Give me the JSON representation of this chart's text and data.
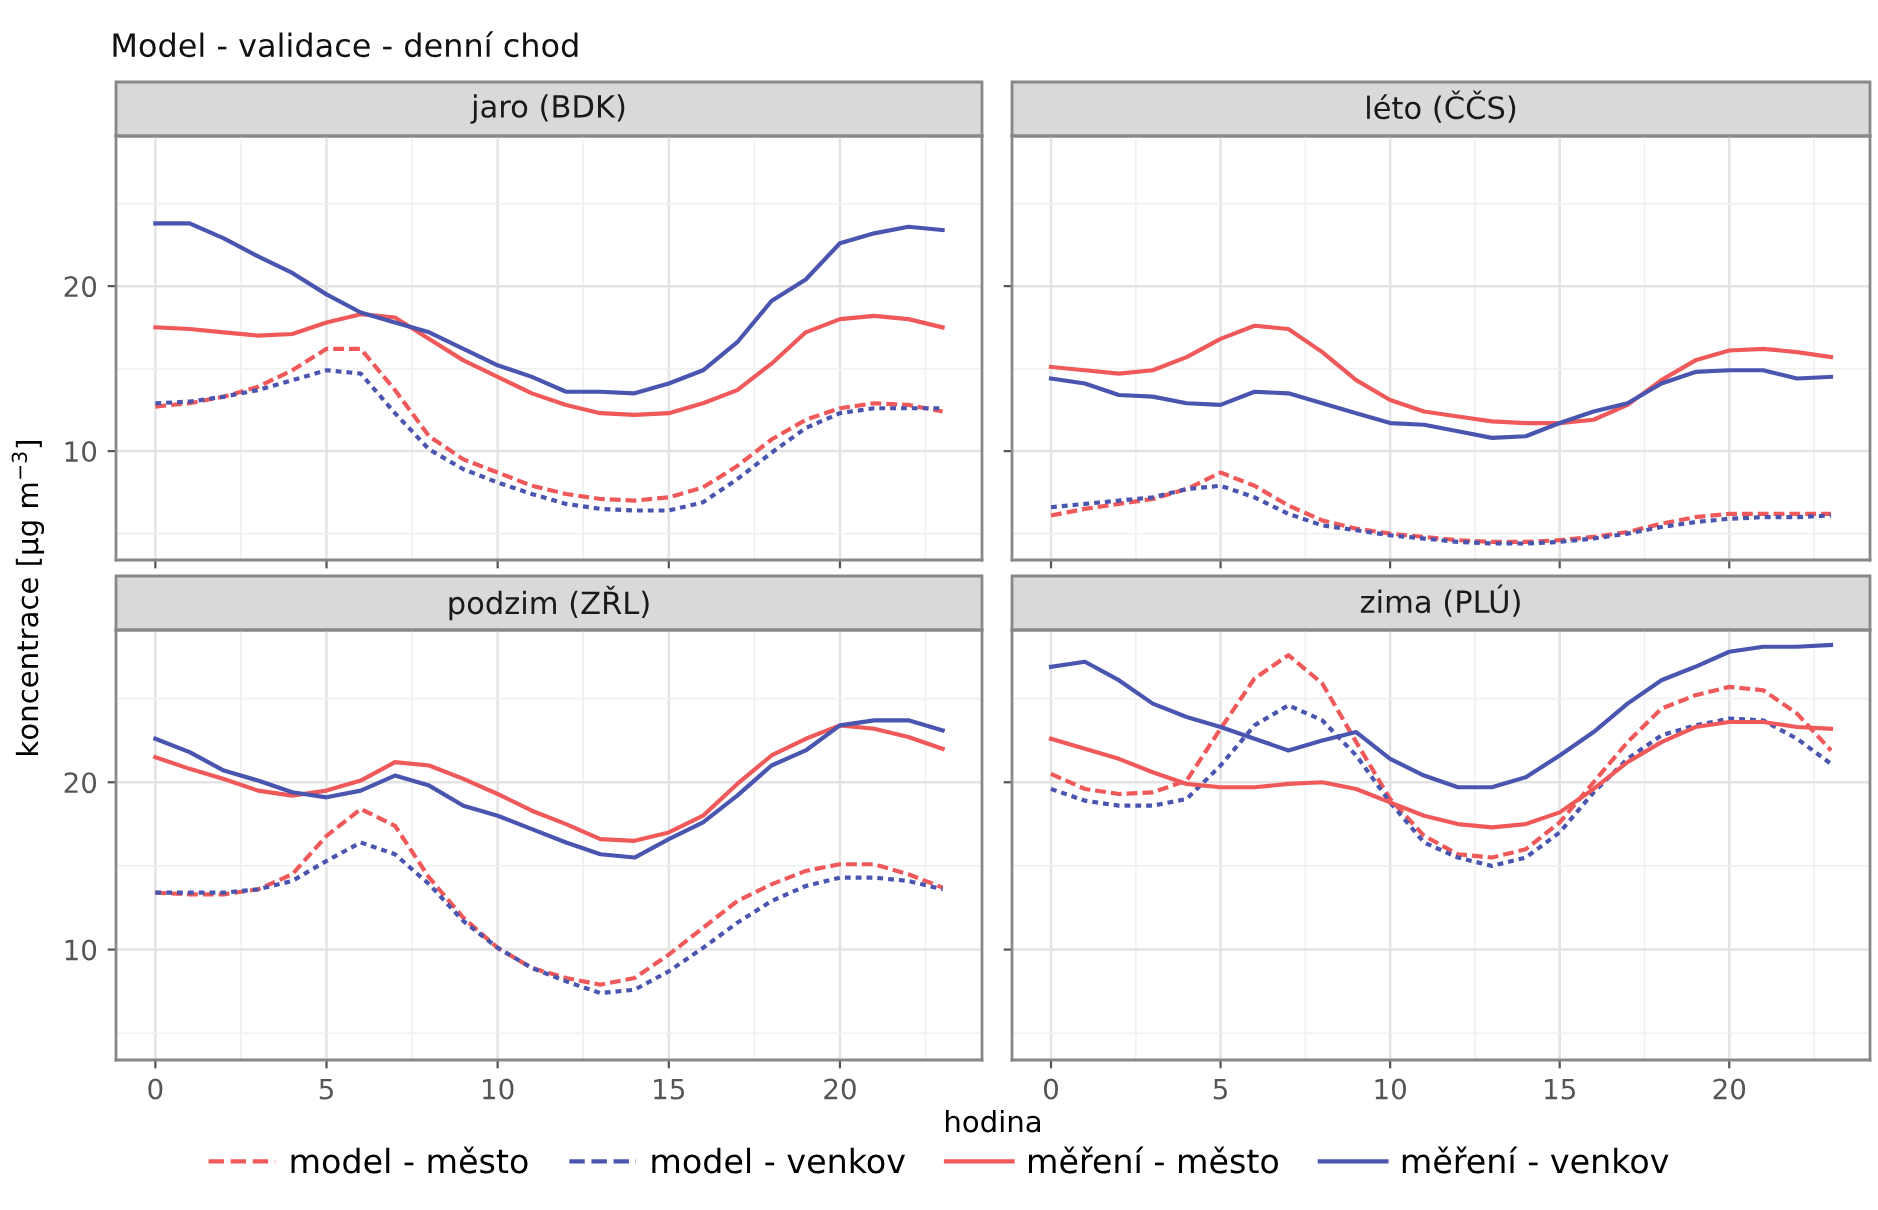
{
  "chart_data": [
    {
      "type": "line",
      "title": "Model - validace - denní chod",
      "subtitle": "jaro (BDK)",
      "ylabel": "koncentrace [μg m$^{−3}$]",
      "x": [
        0,
        1,
        2,
        3,
        4,
        5,
        6,
        7,
        8,
        9,
        10,
        11,
        12,
        13,
        14,
        15,
        16,
        17,
        18,
        19,
        20,
        21,
        22,
        23
      ],
      "xlim": [
        -1.15,
        24.15
      ],
      "xticks": [
        0,
        5,
        10,
        15,
        20
      ],
      "ylim": [
        3.4,
        29.1
      ],
      "yticks": [
        10,
        20
      ],
      "grid": true,
      "tick_labels": "y",
      "legend": "bottom",
      "series": [
        {
          "name": "model - město",
          "color": "#f0595a",
          "line_style": "dashed",
          "values": [
            12.7,
            12.9,
            13.3,
            13.9,
            14.9,
            16.2,
            16.2,
            13.7,
            10.9,
            9.5,
            8.7,
            7.9,
            7.4,
            7.1,
            7.0,
            7.2,
            7.8,
            9.1,
            10.7,
            11.9,
            12.6,
            12.9,
            12.8,
            12.4
          ]
        },
        {
          "name": "model - venkov",
          "color": "#4a55b0",
          "line_style": "dashed",
          "values": [
            12.9,
            13.0,
            13.3,
            13.7,
            14.3,
            14.9,
            14.7,
            12.3,
            10.1,
            8.9,
            8.1,
            7.4,
            6.8,
            6.5,
            6.4,
            6.4,
            6.9,
            8.3,
            9.9,
            11.4,
            12.3,
            12.6,
            12.6,
            12.6
          ]
        },
        {
          "name": "měření - město",
          "color": "#f0595a",
          "line_style": "solid",
          "values": [
            17.5,
            17.4,
            17.2,
            17.0,
            17.1,
            17.8,
            18.3,
            18.1,
            16.8,
            15.5,
            14.5,
            13.5,
            12.8,
            12.3,
            12.2,
            12.3,
            12.9,
            13.7,
            15.3,
            17.2,
            18.0,
            18.2,
            18.0,
            17.5
          ]
        },
        {
          "name": "měření - venkov",
          "color": "#4a55b0",
          "line_style": "solid",
          "values": [
            23.8,
            23.8,
            22.9,
            21.8,
            20.8,
            19.5,
            18.4,
            17.8,
            17.2,
            16.2,
            15.2,
            14.5,
            13.6,
            13.6,
            13.5,
            14.1,
            14.9,
            16.6,
            19.1,
            20.4,
            22.6,
            23.2,
            23.6,
            23.4
          ]
        }
      ]
    },
    {
      "type": "line",
      "subtitle": "léto (ČČS)",
      "x": [
        0,
        1,
        2,
        3,
        4,
        5,
        6,
        7,
        8,
        9,
        10,
        11,
        12,
        13,
        14,
        15,
        16,
        17,
        18,
        19,
        20,
        21,
        22,
        23
      ],
      "xlim": [
        -1.15,
        24.15
      ],
      "xticks": [
        0,
        5,
        10,
        15,
        20
      ],
      "ylim": [
        3.4,
        29.1
      ],
      "yticks": [
        10,
        20
      ],
      "grid": true,
      "tick_labels": false,
      "series": [
        {
          "name": "model - město",
          "color": "#f0595a",
          "line_style": "dashed",
          "values": [
            6.1,
            6.5,
            6.8,
            7.1,
            7.7,
            8.7,
            7.9,
            6.7,
            5.8,
            5.3,
            5.0,
            4.8,
            4.6,
            4.5,
            4.5,
            4.6,
            4.8,
            5.1,
            5.6,
            6.0,
            6.2,
            6.2,
            6.2,
            6.2
          ]
        },
        {
          "name": "model - venkov",
          "color": "#4a55b0",
          "line_style": "dashed",
          "values": [
            6.6,
            6.8,
            7.0,
            7.2,
            7.7,
            7.9,
            7.2,
            6.2,
            5.5,
            5.2,
            4.9,
            4.7,
            4.5,
            4.4,
            4.4,
            4.5,
            4.7,
            5.0,
            5.4,
            5.7,
            5.9,
            6.0,
            6.0,
            6.1
          ]
        },
        {
          "name": "měření - město",
          "color": "#f0595a",
          "line_style": "solid",
          "values": [
            15.1,
            14.9,
            14.7,
            14.9,
            15.7,
            16.8,
            17.6,
            17.4,
            16.0,
            14.3,
            13.1,
            12.4,
            12.1,
            11.8,
            11.7,
            11.7,
            11.9,
            12.8,
            14.3,
            15.5,
            16.1,
            16.2,
            16.0,
            15.7
          ]
        },
        {
          "name": "měření - venkov",
          "color": "#4a55b0",
          "line_style": "solid",
          "values": [
            14.4,
            14.1,
            13.4,
            13.3,
            12.9,
            12.8,
            13.6,
            13.5,
            12.9,
            12.3,
            11.7,
            11.6,
            11.2,
            10.8,
            10.9,
            11.7,
            12.4,
            12.9,
            14.1,
            14.8,
            14.9,
            14.9,
            14.4,
            14.5
          ]
        }
      ]
    },
    {
      "type": "line",
      "subtitle": "podzim (ZŘL)",
      "xlabel": "hodina",
      "x": [
        0,
        1,
        2,
        3,
        4,
        5,
        6,
        7,
        8,
        9,
        10,
        11,
        12,
        13,
        14,
        15,
        16,
        17,
        18,
        19,
        20,
        21,
        22,
        23
      ],
      "xlim": [
        -1.15,
        24.15
      ],
      "xticks": [
        0,
        5,
        10,
        15,
        20
      ],
      "ylim": [
        3.4,
        29.1
      ],
      "yticks": [
        10,
        20
      ],
      "grid": true,
      "series": [
        {
          "name": "model - město",
          "color": "#f0595a",
          "line_style": "dashed",
          "values": [
            13.4,
            13.3,
            13.3,
            13.6,
            14.5,
            16.8,
            18.4,
            17.4,
            14.3,
            11.9,
            10.1,
            8.9,
            8.3,
            7.9,
            8.3,
            9.7,
            11.3,
            12.9,
            13.9,
            14.7,
            15.1,
            15.1,
            14.5,
            13.7
          ]
        },
        {
          "name": "model - venkov",
          "color": "#4a55b0",
          "line_style": "dashed",
          "values": [
            13.4,
            13.4,
            13.4,
            13.6,
            14.1,
            15.3,
            16.4,
            15.7,
            13.9,
            11.7,
            10.1,
            8.9,
            8.1,
            7.4,
            7.6,
            8.7,
            10.1,
            11.6,
            12.9,
            13.8,
            14.3,
            14.3,
            14.1,
            13.6
          ]
        },
        {
          "name": "měření - město",
          "color": "#f0595a",
          "line_style": "solid",
          "values": [
            21.5,
            20.8,
            20.2,
            19.5,
            19.2,
            19.5,
            20.1,
            21.2,
            21.0,
            20.2,
            19.3,
            18.3,
            17.5,
            16.6,
            16.5,
            17.0,
            18.0,
            19.9,
            21.6,
            22.6,
            23.4,
            23.2,
            22.7,
            22.0
          ]
        },
        {
          "name": "měření - venkov",
          "color": "#4a55b0",
          "line_style": "solid",
          "values": [
            22.6,
            21.8,
            20.7,
            20.1,
            19.4,
            19.1,
            19.5,
            20.4,
            19.8,
            18.6,
            18.0,
            17.2,
            16.4,
            15.7,
            15.5,
            16.6,
            17.6,
            19.2,
            21.0,
            21.9,
            23.4,
            23.7,
            23.7,
            23.1
          ]
        }
      ]
    },
    {
      "type": "line",
      "subtitle": "zima (PLÚ)",
      "x": [
        0,
        1,
        2,
        3,
        4,
        5,
        6,
        7,
        8,
        9,
        10,
        11,
        12,
        13,
        14,
        15,
        16,
        17,
        18,
        19,
        20,
        21,
        22,
        23
      ],
      "xlim": [
        -1.15,
        24.15
      ],
      "xticks": [
        0,
        5,
        10,
        15,
        20
      ],
      "ylim": [
        3.4,
        29.1
      ],
      "yticks": [
        10,
        20
      ],
      "grid": true,
      "tick_labels": "x",
      "series": [
        {
          "name": "model - město",
          "color": "#f0595a",
          "line_style": "dashed",
          "values": [
            20.5,
            19.6,
            19.3,
            19.4,
            20.1,
            23.2,
            26.2,
            27.6,
            25.9,
            22.4,
            19.0,
            16.8,
            15.7,
            15.5,
            16.0,
            17.6,
            20.0,
            22.4,
            24.4,
            25.2,
            25.7,
            25.5,
            24.1,
            21.9
          ]
        },
        {
          "name": "model - venkov",
          "color": "#4a55b0",
          "line_style": "dashed",
          "values": [
            19.6,
            18.9,
            18.6,
            18.6,
            19.0,
            21.0,
            23.4,
            24.6,
            23.7,
            21.6,
            18.8,
            16.4,
            15.5,
            15.0,
            15.5,
            17.0,
            19.4,
            21.4,
            22.8,
            23.4,
            23.8,
            23.7,
            22.6,
            21.1
          ]
        },
        {
          "name": "měření - město",
          "color": "#f0595a",
          "line_style": "solid",
          "values": [
            22.6,
            22.0,
            21.4,
            20.6,
            19.9,
            19.7,
            19.7,
            19.9,
            20.0,
            19.6,
            18.8,
            18.0,
            17.5,
            17.3,
            17.5,
            18.2,
            19.6,
            21.2,
            22.4,
            23.3,
            23.6,
            23.6,
            23.3,
            23.2
          ]
        },
        {
          "name": "měření - venkov",
          "color": "#4a55b0",
          "line_style": "solid",
          "values": [
            26.9,
            27.2,
            26.1,
            24.7,
            23.9,
            23.3,
            22.6,
            21.9,
            22.5,
            23.0,
            21.4,
            20.4,
            19.7,
            19.7,
            20.3,
            21.6,
            23.0,
            24.7,
            26.1,
            26.9,
            27.8,
            28.1,
            28.1,
            28.2
          ]
        }
      ]
    }
  ]
}
